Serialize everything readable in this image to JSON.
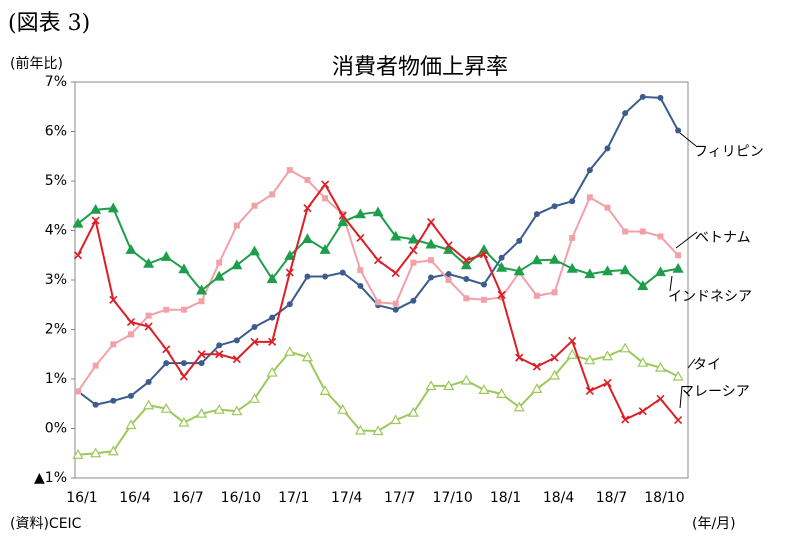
{
  "chart_data": {
    "type": "line",
    "figure_label": "(図表 3)",
    "title": "消費者物価上昇率",
    "y_label": "(前年比)",
    "source": "(資料)CEIC",
    "x_label": "(年/月)",
    "categories": [
      "16/1",
      null,
      null,
      "16/4",
      null,
      null,
      "16/7",
      null,
      null,
      "16/10",
      null,
      null,
      "17/1",
      null,
      null,
      "17/4",
      null,
      null,
      "17/7",
      null,
      null,
      "17/10",
      null,
      null,
      "18/1",
      null,
      null,
      "18/4",
      null,
      null,
      "18/7",
      null,
      null,
      "18/10",
      null
    ],
    "ylim": [
      -1,
      7
    ],
    "yticks": [
      {
        "value": -1,
        "label": "▲1%"
      },
      {
        "value": 0,
        "label": "0%"
      },
      {
        "value": 1,
        "label": "1%"
      },
      {
        "value": 2,
        "label": "2%"
      },
      {
        "value": 3,
        "label": "3%"
      },
      {
        "value": 4,
        "label": "4%"
      },
      {
        "value": 5,
        "label": "5%"
      },
      {
        "value": 6,
        "label": "6%"
      },
      {
        "value": 7,
        "label": "7%"
      }
    ],
    "grid": false,
    "series": [
      {
        "name": "フィリピン",
        "color": "#3b5c8c",
        "marker": "circle",
        "values": [
          0.75,
          0.48,
          0.56,
          0.66,
          0.94,
          1.32,
          1.32,
          1.32,
          1.68,
          1.78,
          2.05,
          2.24,
          2.51,
          3.07,
          3.07,
          3.15,
          2.88,
          2.49,
          2.4,
          2.58,
          3.05,
          3.12,
          3.02,
          2.91,
          3.45,
          3.79,
          4.33,
          4.49,
          4.59,
          5.22,
          5.66,
          6.37,
          6.7,
          6.68,
          6.02
        ]
      },
      {
        "name": "ベトナム",
        "color": "#f2a1a8",
        "marker": "square",
        "values": [
          0.75,
          1.27,
          1.7,
          1.9,
          2.28,
          2.4,
          2.4,
          2.57,
          3.35,
          4.1,
          4.5,
          4.73,
          5.22,
          5.02,
          4.65,
          4.33,
          3.2,
          2.55,
          2.52,
          3.35,
          3.4,
          3.0,
          2.63,
          2.6,
          2.65,
          3.15,
          2.68,
          2.75,
          3.85,
          4.67,
          4.46,
          3.98,
          3.98,
          3.88,
          3.5
        ]
      },
      {
        "name": "インドネシア",
        "color": "#1e9e4a",
        "marker": "triangle",
        "values": [
          4.14,
          4.42,
          4.45,
          3.61,
          3.33,
          3.47,
          3.22,
          2.79,
          3.07,
          3.3,
          3.58,
          3.02,
          3.49,
          3.83,
          3.61,
          4.17,
          4.33,
          4.37,
          3.88,
          3.82,
          3.72,
          3.61,
          3.3,
          3.61,
          3.25,
          3.18,
          3.4,
          3.41,
          3.23,
          3.12,
          3.18,
          3.2,
          2.88,
          3.16,
          3.23
        ]
      },
      {
        "name": "タイ",
        "color": "#9cc85c",
        "marker": "triangle-open",
        "values": [
          -0.53,
          -0.5,
          -0.46,
          0.07,
          0.47,
          0.4,
          0.12,
          0.3,
          0.38,
          0.35,
          0.6,
          1.13,
          1.55,
          1.44,
          0.76,
          0.38,
          -0.04,
          -0.05,
          0.17,
          0.32,
          0.86,
          0.86,
          0.97,
          0.78,
          0.7,
          0.43,
          0.8,
          1.07,
          1.49,
          1.38,
          1.46,
          1.62,
          1.33,
          1.23,
          1.05
        ]
      },
      {
        "name": "マレーシア",
        "color": "#dc1f26",
        "marker": "cross",
        "values": [
          3.5,
          4.2,
          2.6,
          2.15,
          2.06,
          1.6,
          1.05,
          1.5,
          1.5,
          1.4,
          1.75,
          1.75,
          3.15,
          4.45,
          4.93,
          4.3,
          3.85,
          3.4,
          3.14,
          3.6,
          4.17,
          3.7,
          3.4,
          3.52,
          2.7,
          1.43,
          1.25,
          1.43,
          1.77,
          0.76,
          0.92,
          0.18,
          0.35,
          0.6,
          0.17
        ]
      }
    ]
  }
}
